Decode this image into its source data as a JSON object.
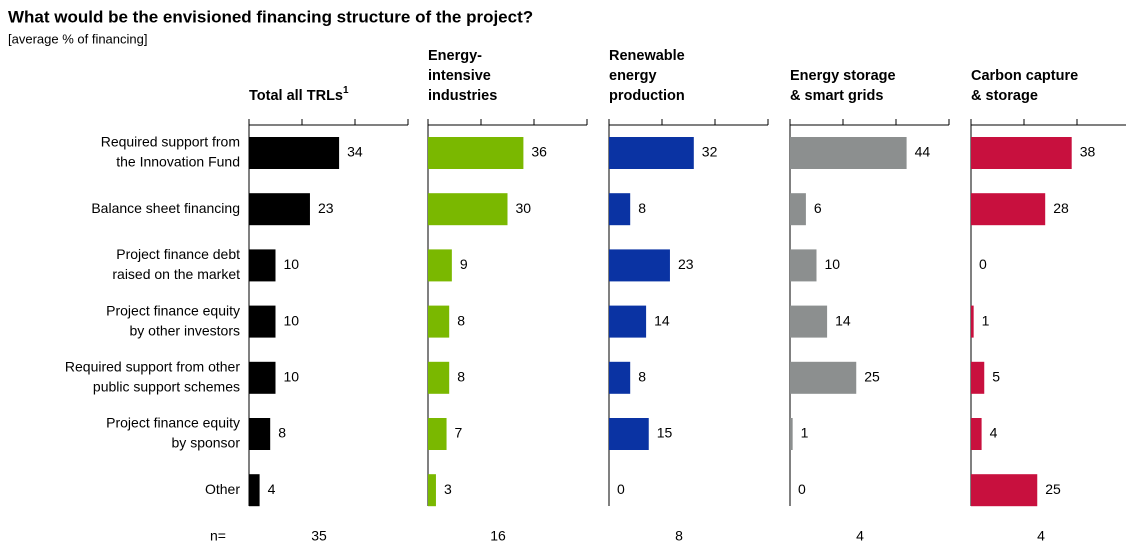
{
  "chart_data": {
    "type": "bar",
    "orientation": "horizontal",
    "title": "What would be the envisioned financing structure of the project?",
    "subtitle": "[average % of financing]",
    "categories": [
      [
        "Required support from",
        "the Innovation Fund"
      ],
      [
        "Balance sheet financing"
      ],
      [
        "Project finance debt",
        "raised on the market"
      ],
      [
        "Project finance equity",
        "by other investors"
      ],
      [
        "Required support from other",
        "public support schemes"
      ],
      [
        "Project finance equity",
        "by sponsor"
      ],
      [
        "Other"
      ]
    ],
    "series": [
      {
        "name": [
          "Total all TRLs"
        ],
        "footnote_mark": "1",
        "color": "#000000",
        "values": [
          34,
          23,
          10,
          10,
          10,
          8,
          4
        ],
        "n": 35
      },
      {
        "name": [
          "Energy-",
          "intensive",
          "industries"
        ],
        "color": "#7ab800",
        "values": [
          36,
          30,
          9,
          8,
          8,
          7,
          3
        ],
        "n": 16
      },
      {
        "name": [
          "Renewable",
          "energy",
          "production"
        ],
        "color": "#0a33a3",
        "values": [
          32,
          8,
          23,
          14,
          8,
          15,
          0
        ],
        "n": 8
      },
      {
        "name": [
          "Energy storage",
          "& smart grids"
        ],
        "color": "#8c8f8f",
        "values": [
          44,
          6,
          10,
          14,
          25,
          1,
          0
        ],
        "n": 4
      },
      {
        "name": [
          "Carbon capture",
          "& storage"
        ],
        "color": "#c8103e",
        "values": [
          38,
          28,
          0,
          1,
          5,
          4,
          25
        ],
        "n": 4
      }
    ],
    "n_label": "n=",
    "xlim": [
      0,
      60
    ],
    "xticks": [
      0,
      20,
      40,
      60
    ]
  }
}
